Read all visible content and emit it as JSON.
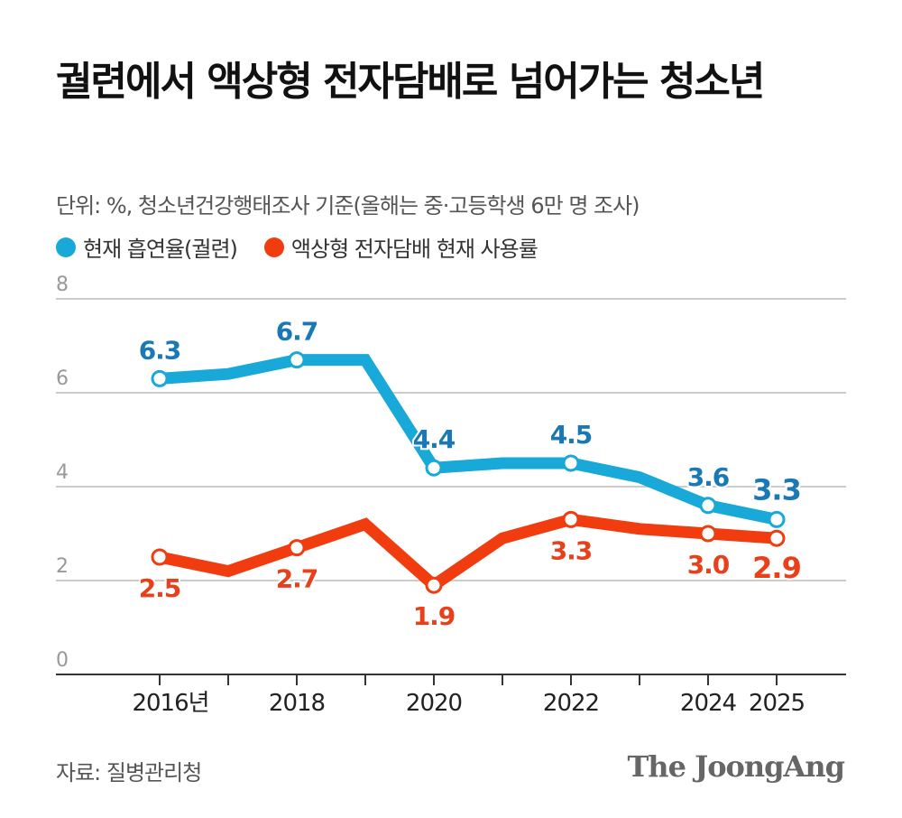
{
  "title": "궐련에서 액상형 전자담배로 넘어가는 청소년",
  "subtitle": "단위: %, 청소년건강행태조사 기준(올해는 중·고등학생 6만 명 조사)",
  "source": "자료: 질병관리청",
  "logo": "The JoongAng",
  "chart_data": {
    "type": "line",
    "x": [
      2016,
      2017,
      2018,
      2019,
      2020,
      2021,
      2022,
      2023,
      2024,
      2025
    ],
    "x_tick_labels": [
      {
        "x": 2016,
        "label": "2016년"
      },
      {
        "x": 2018,
        "label": "2018"
      },
      {
        "x": 2020,
        "label": "2020"
      },
      {
        "x": 2022,
        "label": "2022"
      },
      {
        "x": 2024,
        "label": "2024"
      },
      {
        "x": 2025,
        "label": "2025"
      }
    ],
    "y_ticks": [
      "0",
      "2",
      "4",
      "6",
      "8"
    ],
    "ylim": [
      0,
      8
    ],
    "grid": true,
    "legend_placement": "top-left",
    "labeled_years": [
      2016,
      2018,
      2020,
      2022,
      2024,
      2025
    ],
    "series": [
      {
        "name": "현재 흡연율(궐련)",
        "color": "#19a9d8",
        "label_color": "#1a78b5",
        "values": [
          6.3,
          6.4,
          6.7,
          6.7,
          4.4,
          4.5,
          4.5,
          4.2,
          3.6,
          3.3
        ],
        "data_labels": [
          "6.3",
          "",
          "6.7",
          "",
          "4.4",
          "",
          "4.5",
          "",
          "3.6",
          "3.3"
        ]
      },
      {
        "name": "액상형 전자담배 현재 사용률",
        "color": "#f03c0f",
        "label_color": "#e8401a",
        "values": [
          2.5,
          2.2,
          2.7,
          3.2,
          1.9,
          2.9,
          3.3,
          3.1,
          3.0,
          2.9
        ],
        "data_labels": [
          "2.5",
          "",
          "2.7",
          "",
          "1.9",
          "",
          "3.3",
          "",
          "3.0",
          "2.9"
        ]
      }
    ]
  }
}
